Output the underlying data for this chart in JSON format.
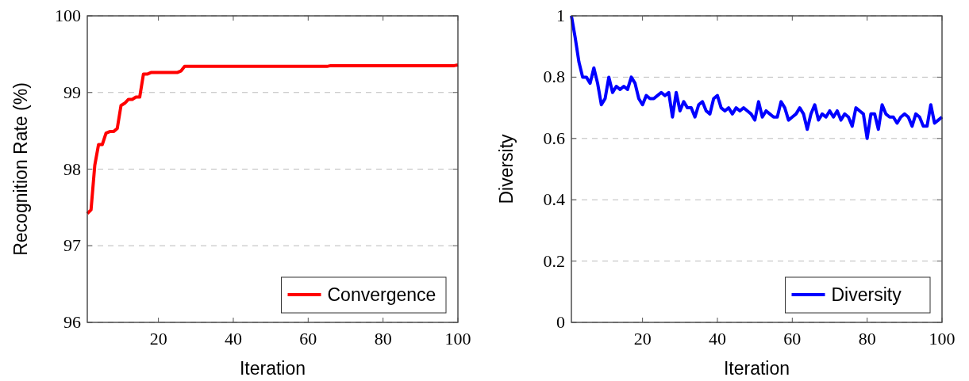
{
  "chart_data": [
    {
      "type": "line",
      "xlabel": "Iteration",
      "ylabel": "Recognition Rate (%)",
      "xlim": [
        1,
        100
      ],
      "xticks": [
        20,
        40,
        60,
        80,
        100
      ],
      "ylim": [
        96,
        100
      ],
      "yticks": [
        96,
        97,
        98,
        99,
        100
      ],
      "grid": "y",
      "legend": "bottom right",
      "x": [
        1,
        2,
        3,
        4,
        5,
        6,
        7,
        8,
        9,
        10,
        11,
        12,
        13,
        14,
        15,
        16,
        17,
        18,
        19,
        20,
        21,
        22,
        23,
        24,
        25,
        26,
        27,
        28,
        29,
        30,
        31,
        32,
        33,
        34,
        35,
        36,
        37,
        38,
        39,
        40,
        41,
        42,
        43,
        44,
        45,
        46,
        47,
        48,
        49,
        50,
        51,
        52,
        53,
        54,
        55,
        56,
        57,
        58,
        59,
        60,
        61,
        62,
        63,
        64,
        65,
        66,
        67,
        68,
        69,
        70,
        71,
        72,
        73,
        74,
        75,
        76,
        77,
        78,
        79,
        80,
        81,
        82,
        83,
        84,
        85,
        86,
        87,
        88,
        89,
        90,
        91,
        92,
        93,
        94,
        95,
        96,
        97,
        98,
        99,
        100
      ],
      "series": [
        {
          "name": "Convergence",
          "color": "#ff0000",
          "values": [
            97.42,
            97.47,
            98.05,
            98.32,
            98.32,
            98.47,
            98.49,
            98.49,
            98.53,
            98.83,
            98.86,
            98.91,
            98.91,
            98.94,
            98.94,
            99.24,
            99.24,
            99.26,
            99.26,
            99.26,
            99.26,
            99.26,
            99.26,
            99.26,
            99.26,
            99.28,
            99.34,
            99.34,
            99.34,
            99.34,
            99.34,
            99.34,
            99.34,
            99.34,
            99.34,
            99.34,
            99.34,
            99.34,
            99.34,
            99.34,
            99.34,
            99.34,
            99.34,
            99.34,
            99.34,
            99.34,
            99.34,
            99.34,
            99.34,
            99.34,
            99.34,
            99.34,
            99.34,
            99.34,
            99.34,
            99.34,
            99.34,
            99.34,
            99.34,
            99.34,
            99.34,
            99.34,
            99.34,
            99.34,
            99.34,
            99.35,
            99.35,
            99.35,
            99.35,
            99.35,
            99.35,
            99.35,
            99.35,
            99.35,
            99.35,
            99.35,
            99.35,
            99.35,
            99.35,
            99.35,
            99.35,
            99.35,
            99.35,
            99.35,
            99.35,
            99.35,
            99.35,
            99.35,
            99.35,
            99.35,
            99.35,
            99.35,
            99.35,
            99.35,
            99.35,
            99.35,
            99.35,
            99.35,
            99.35,
            99.36
          ]
        }
      ]
    },
    {
      "type": "line",
      "xlabel": "Iteration",
      "ylabel": "Diversity",
      "xlim": [
        1,
        100
      ],
      "xticks": [
        20,
        40,
        60,
        80,
        100
      ],
      "ylim": [
        0,
        1
      ],
      "yticks": [
        0,
        0.2,
        0.4,
        0.6,
        0.8,
        1
      ],
      "grid": "y",
      "legend": "bottom right",
      "x": [
        1,
        2,
        3,
        4,
        5,
        6,
        7,
        8,
        9,
        10,
        11,
        12,
        13,
        14,
        15,
        16,
        17,
        18,
        19,
        20,
        21,
        22,
        23,
        24,
        25,
        26,
        27,
        28,
        29,
        30,
        31,
        32,
        33,
        34,
        35,
        36,
        37,
        38,
        39,
        40,
        41,
        42,
        43,
        44,
        45,
        46,
        47,
        48,
        49,
        50,
        51,
        52,
        53,
        54,
        55,
        56,
        57,
        58,
        59,
        60,
        61,
        62,
        63,
        64,
        65,
        66,
        67,
        68,
        69,
        70,
        71,
        72,
        73,
        74,
        75,
        76,
        77,
        78,
        79,
        80,
        81,
        82,
        83,
        84,
        85,
        86,
        87,
        88,
        89,
        90,
        91,
        92,
        93,
        94,
        95,
        96,
        97,
        98,
        99,
        100
      ],
      "series": [
        {
          "name": "Diversity",
          "color": "#0000ff",
          "values": [
            1.0,
            0.93,
            0.85,
            0.8,
            0.8,
            0.78,
            0.83,
            0.78,
            0.71,
            0.73,
            0.8,
            0.75,
            0.77,
            0.76,
            0.77,
            0.76,
            0.8,
            0.78,
            0.73,
            0.71,
            0.74,
            0.73,
            0.73,
            0.74,
            0.75,
            0.74,
            0.75,
            0.67,
            0.75,
            0.69,
            0.72,
            0.7,
            0.7,
            0.67,
            0.71,
            0.72,
            0.69,
            0.68,
            0.73,
            0.74,
            0.7,
            0.69,
            0.7,
            0.68,
            0.7,
            0.69,
            0.7,
            0.69,
            0.68,
            0.66,
            0.72,
            0.67,
            0.69,
            0.68,
            0.67,
            0.67,
            0.72,
            0.7,
            0.66,
            0.67,
            0.68,
            0.7,
            0.68,
            0.63,
            0.68,
            0.71,
            0.66,
            0.68,
            0.67,
            0.69,
            0.67,
            0.69,
            0.66,
            0.68,
            0.67,
            0.64,
            0.7,
            0.69,
            0.68,
            0.6,
            0.68,
            0.68,
            0.63,
            0.71,
            0.68,
            0.67,
            0.67,
            0.65,
            0.67,
            0.68,
            0.67,
            0.64,
            0.68,
            0.67,
            0.64,
            0.64,
            0.71,
            0.65,
            0.66,
            0.67
          ]
        }
      ]
    }
  ]
}
